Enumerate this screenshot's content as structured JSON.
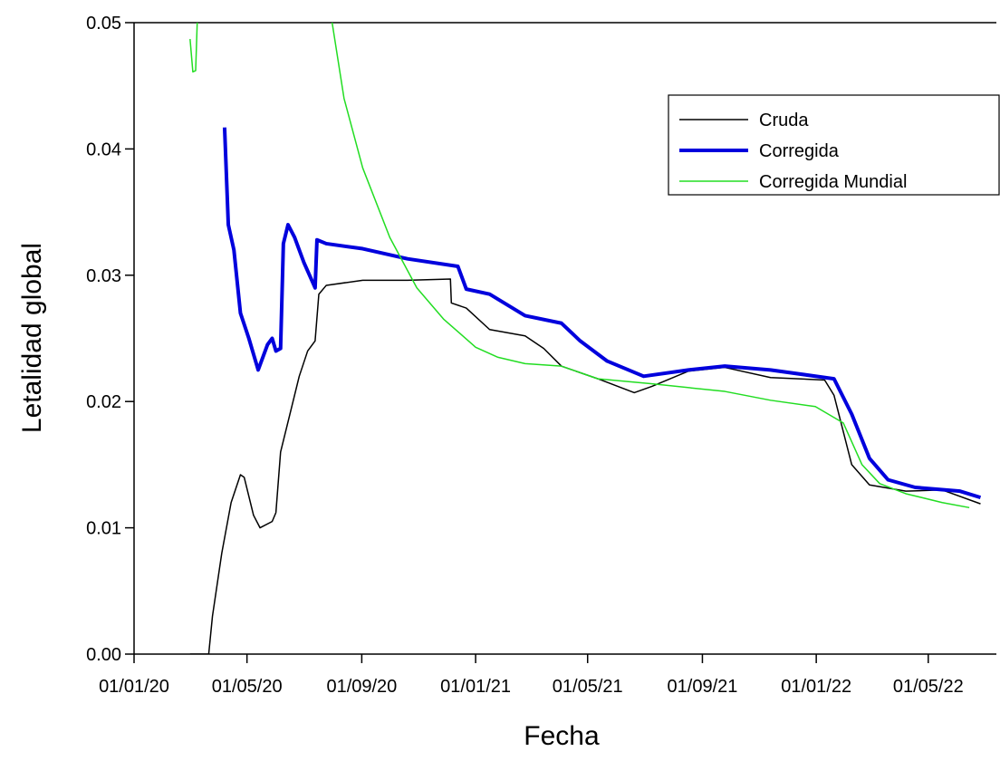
{
  "chart_data": {
    "type": "line",
    "x_label": "Fecha",
    "y_label": "Letalidad global",
    "xlim": [
      "01/01/20",
      "13/07/22"
    ],
    "xticks": [
      "01/01/20",
      "01/05/20",
      "01/09/20",
      "01/01/21",
      "01/05/21",
      "01/09/21",
      "01/01/22",
      "01/05/22"
    ],
    "ylim": [
      0,
      0.05
    ],
    "yticks": [
      {
        "value": 0,
        "label": "0.00"
      },
      0.01,
      0.02,
      0.03,
      0.04,
      0.05
    ],
    "legend": "top-right",
    "series": [
      {
        "name": "Cruda",
        "color": "#000000",
        "x": [
          "01/03/20",
          "21/03/20",
          "25/03/20",
          "04/04/20",
          "14/04/20",
          "24/04/20",
          "28/04/20",
          "08/05/20",
          "15/05/20",
          "28/05/20",
          "01/06/20",
          "06/06/20",
          "16/06/20",
          "26/06/20",
          "05/07/20",
          "13/07/20",
          "17/07/20",
          "25/07/20",
          "02/09/20",
          "20/10/20",
          "05/12/20",
          "06/12/20",
          "22/12/20",
          "16/01/21",
          "23/02/21",
          "15/03/21",
          "03/04/21",
          "12/05/21",
          "20/06/21",
          "09/07/21",
          "17/08/21",
          "25/09/21",
          "13/11/21",
          "10/01/22",
          "20/01/22",
          "08/02/22",
          "27/02/22",
          "07/04/22",
          "16/05/22",
          "26/06/22"
        ],
        "values": [
          0,
          0,
          0.003,
          0.008,
          0.012,
          0.0142,
          0.014,
          0.011,
          0.01,
          0.0105,
          0.0112,
          0.016,
          0.019,
          0.022,
          0.024,
          0.0248,
          0.0285,
          0.0292,
          0.0296,
          0.0296,
          0.0297,
          0.0278,
          0.0274,
          0.0257,
          0.0252,
          0.0242,
          0.0228,
          0.0218,
          0.0207,
          0.0212,
          0.0224,
          0.0227,
          0.0219,
          0.0217,
          0.0205,
          0.015,
          0.0134,
          0.0129,
          0.013,
          0.0119
        ]
      },
      {
        "name": "Corregida",
        "color": "#0000dd",
        "x": [
          "07/04/20",
          "11/04/20",
          "17/04/20",
          "24/04/20",
          "03/05/20",
          "13/05/20",
          "23/05/20",
          "28/05/20",
          "01/06/20",
          "06/06/20",
          "09/06/20",
          "14/06/20",
          "21/06/20",
          "01/07/20",
          "13/07/20",
          "15/07/20",
          "25/07/20",
          "02/09/20",
          "20/10/20",
          "13/12/20",
          "22/12/20",
          "16/01/21",
          "23/02/21",
          "03/04/21",
          "23/04/21",
          "22/05/21",
          "30/06/21",
          "17/08/21",
          "25/09/21",
          "13/11/21",
          "20/01/22",
          "08/02/22",
          "27/02/22",
          "19/03/22",
          "17/04/22",
          "04/06/22",
          "26/06/22"
        ],
        "values": [
          0.0417,
          0.034,
          0.032,
          0.027,
          0.025,
          0.0225,
          0.0245,
          0.025,
          0.024,
          0.0242,
          0.0325,
          0.034,
          0.033,
          0.031,
          0.029,
          0.0328,
          0.0325,
          0.0321,
          0.0313,
          0.0307,
          0.0289,
          0.0285,
          0.0268,
          0.0262,
          0.0248,
          0.0232,
          0.022,
          0.0225,
          0.0228,
          0.0225,
          0.0218,
          0.019,
          0.0155,
          0.0138,
          0.0132,
          0.0129,
          0.0124
        ]
      },
      {
        "name": "Corregida Mundial",
        "color": "#22dd22",
        "x": [
          "01/03/20",
          "04/03/20",
          "07/03/20",
          "10/03/20",
          "01/05/20",
          "27/07/20",
          "13/08/20",
          "02/09/20",
          "01/10/20",
          "30/10/20",
          "28/11/20",
          "01/01/21",
          "25/01/21",
          "23/02/21",
          "03/04/21",
          "12/05/21",
          "09/07/21",
          "25/09/21",
          "13/11/21",
          "31/12/21",
          "30/01/22",
          "19/02/22",
          "10/03/22",
          "07/04/22",
          "16/05/22",
          "14/06/22"
        ],
        "values": [
          0.0487,
          0.0461,
          0.0462,
          0.053,
          null,
          0.052,
          0.044,
          0.0385,
          0.033,
          0.029,
          0.0265,
          0.0243,
          0.0235,
          0.023,
          0.0228,
          0.0218,
          0.0214,
          0.0208,
          0.0201,
          0.0196,
          0.0183,
          0.015,
          0.0135,
          0.0127,
          0.012,
          0.0116
        ]
      }
    ]
  }
}
